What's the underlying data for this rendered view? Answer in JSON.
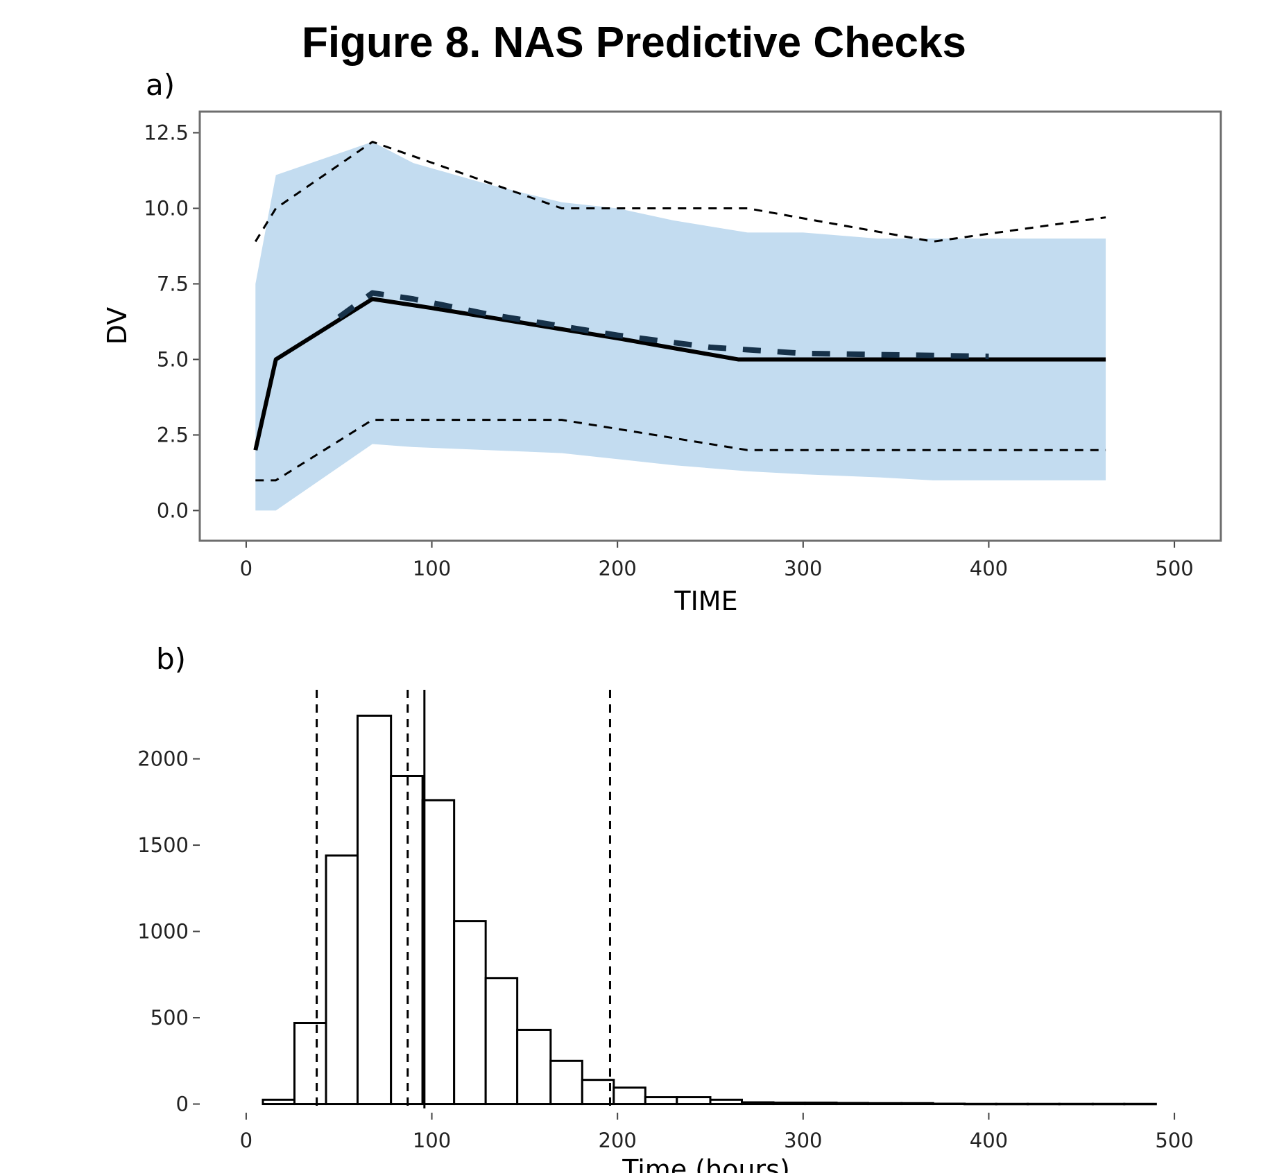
{
  "figure_title": "Figure 8. NAS Predictive Checks",
  "colors": {
    "band": "#c3dcf0",
    "line": "#000000",
    "median_dash": "#17324a",
    "frame": "#6e6e6e"
  },
  "chart_data": [
    {
      "panel_label": "a)",
      "type": "line",
      "xlabel": "TIME",
      "ylabel": "DV",
      "xlim": [
        -25,
        525
      ],
      "ylim": [
        -1.0,
        13.2
      ],
      "xticks": [
        0,
        100,
        200,
        300,
        400,
        500
      ],
      "xtick_labels": [
        "0",
        "100",
        "200",
        "300",
        "400",
        "500"
      ],
      "yticks": [
        0,
        2.5,
        5,
        7.5,
        10,
        12.5
      ],
      "ytick_labels": [
        "0.0",
        "2.5",
        "5.0",
        "7.5",
        "10.0",
        "12.5"
      ],
      "band": {
        "x": [
          5,
          16,
          68,
          90,
          130,
          170,
          200,
          230,
          270,
          300,
          340,
          370,
          400,
          463
        ],
        "lower": [
          0,
          0,
          2.2,
          2.1,
          2.0,
          1.9,
          1.7,
          1.5,
          1.3,
          1.2,
          1.1,
          1.0,
          1.0,
          1.0
        ],
        "upper": [
          7.5,
          11.1,
          12.2,
          11.5,
          10.8,
          10.2,
          10.0,
          9.6,
          9.2,
          9.2,
          9.0,
          9.0,
          9.0,
          9.0
        ]
      },
      "series": [
        {
          "style": "solid",
          "x": [
            5,
            16,
            68,
            100,
            170,
            200,
            265,
            300,
            400,
            463
          ],
          "y": [
            2.0,
            5.0,
            7.0,
            6.7,
            6.0,
            5.7,
            5.0,
            5.0,
            5.0,
            5.0
          ]
        },
        {
          "style": "dashed-thick",
          "x": [
            50,
            68,
            90,
            130,
            200,
            250,
            300,
            400
          ],
          "y": [
            6.4,
            7.2,
            7.0,
            6.5,
            5.8,
            5.4,
            5.2,
            5.1
          ]
        },
        {
          "style": "dashed",
          "x": [
            5,
            16,
            68,
            170,
            270,
            370,
            463
          ],
          "y": [
            8.9,
            10.0,
            12.2,
            10.0,
            10.0,
            8.9,
            9.7
          ]
        },
        {
          "style": "dashed",
          "x": [
            5,
            16,
            68,
            170,
            270,
            463
          ],
          "y": [
            1.0,
            1.0,
            3.0,
            3.0,
            2.0,
            2.0
          ]
        }
      ]
    },
    {
      "panel_label": "b)",
      "type": "bar",
      "xlabel": "Time (hours)",
      "ylabel": "",
      "xlim": [
        -25,
        525
      ],
      "ylim": [
        -30,
        2400
      ],
      "xticks": [
        0,
        100,
        200,
        300,
        400,
        500
      ],
      "xtick_labels": [
        "0",
        "100",
        "200",
        "300",
        "400",
        "500"
      ],
      "yticks": [
        0,
        500,
        1000,
        1500,
        2000
      ],
      "ytick_labels": [
        "0",
        "500",
        "1000",
        "1500",
        "2000"
      ],
      "bin_edges": [
        9,
        26,
        43,
        60,
        78,
        95,
        112,
        129,
        146,
        164,
        181,
        198,
        215,
        232,
        250,
        267,
        284,
        301,
        318,
        335,
        353,
        370,
        387,
        404,
        421,
        438,
        456,
        473,
        490
      ],
      "counts": [
        25,
        470,
        1440,
        2250,
        1900,
        1760,
        1060,
        730,
        430,
        250,
        140,
        95,
        40,
        40,
        25,
        10,
        8,
        8,
        6,
        5,
        5,
        2,
        1,
        1,
        1,
        1,
        1,
        1
      ],
      "vlines": [
        {
          "x": 38,
          "style": "dashed"
        },
        {
          "x": 87,
          "style": "dashed"
        },
        {
          "x": 96,
          "style": "solid"
        },
        {
          "x": 196,
          "style": "dashed"
        }
      ]
    }
  ]
}
